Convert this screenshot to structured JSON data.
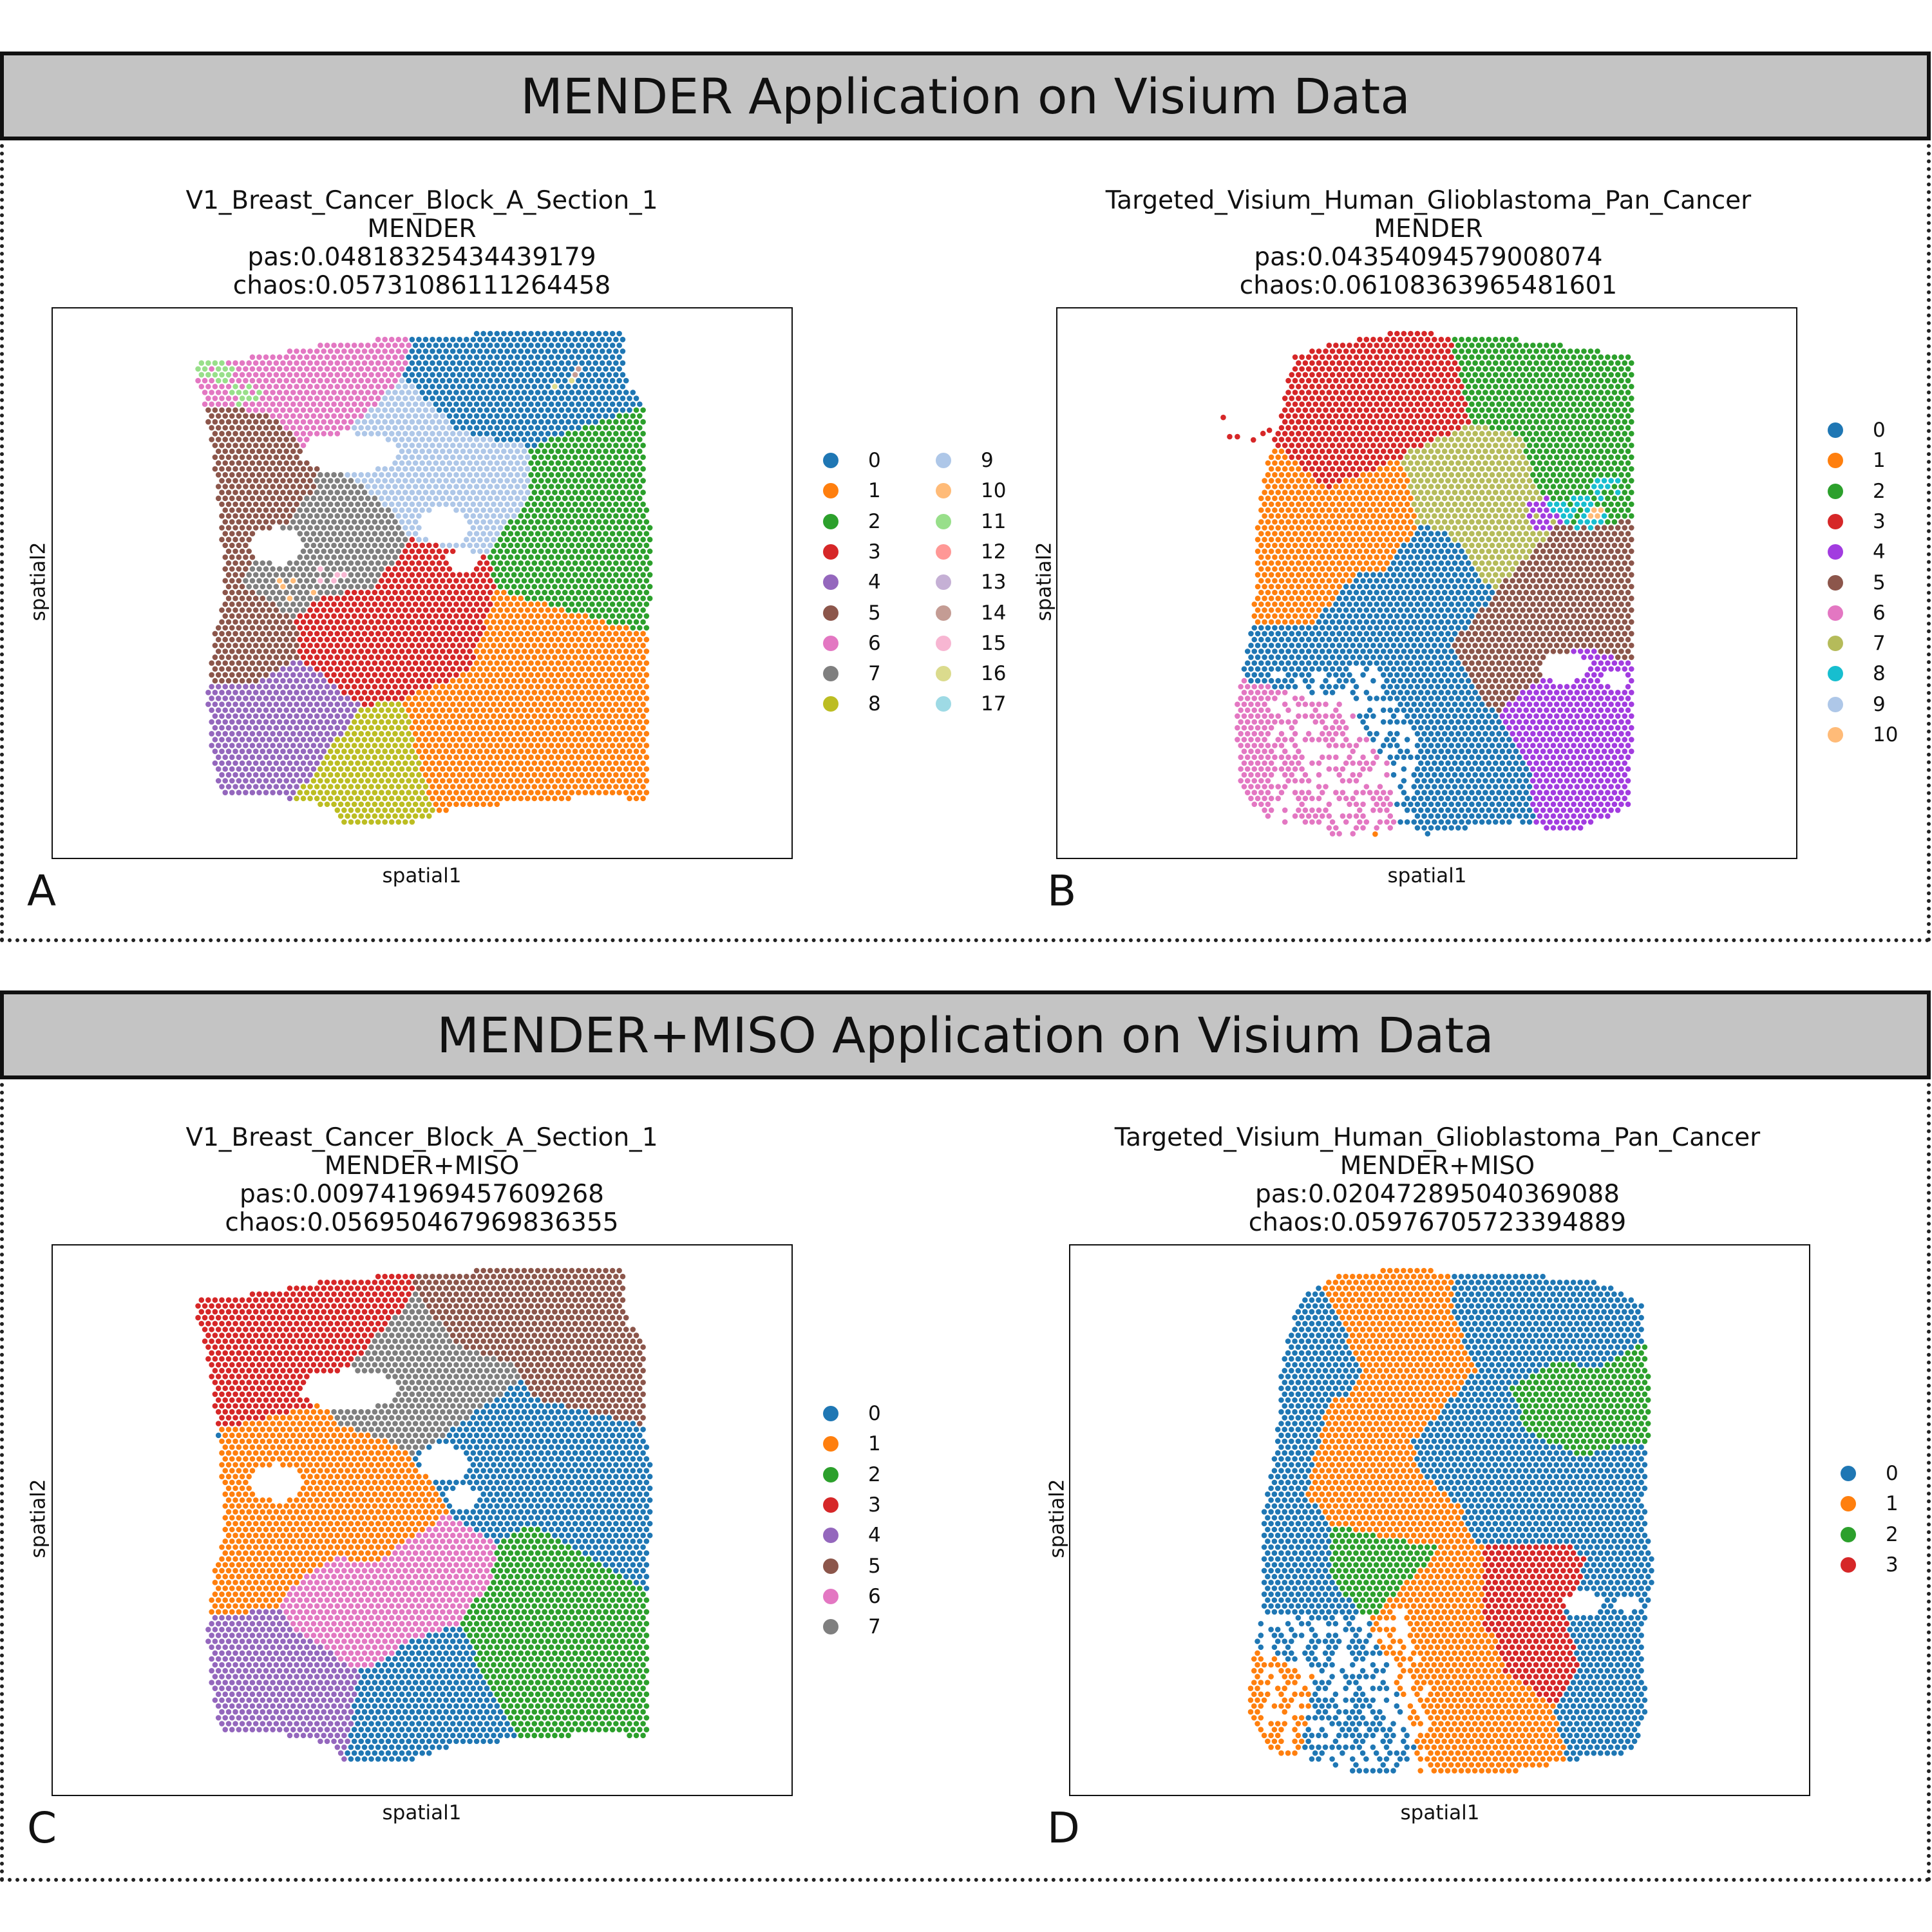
{
  "sections": [
    {
      "title": "MENDER Application on Visium Data"
    },
    {
      "title": "MENDER+MISO Application on Visium Data"
    }
  ],
  "common": {
    "xlabel": "spatial1",
    "ylabel": "spatial2"
  },
  "palette": [
    "#1f77b4",
    "#ff7f0e",
    "#2ca02c",
    "#d62728",
    "#9467bd",
    "#8c564b",
    "#e377c2",
    "#7f7f7f",
    "#bcbd22",
    "#17becf",
    "#aec7e8",
    "#ffbb78",
    "#98df8a",
    "#ff9896",
    "#c5b0d5",
    "#c49c94",
    "#f7b6d2",
    "#dbdb8d",
    "#9edae5"
  ],
  "palette_b": [
    "#1f77b4",
    "#ff7f0e",
    "#2ca02c",
    "#d62728",
    "#a23ce0",
    "#8c564b",
    "#e377c2",
    "#b5bb5a",
    "#17becf",
    "#aec7e8",
    "#ffbb78"
  ],
  "chart_data": [
    {
      "panel": "A",
      "type": "scatter",
      "title_lines": [
        "V1_Breast_Cancer_Block_A_Section_1",
        "MENDER",
        "pas:0.04818325434439179",
        "chaos:0.05731086111264458"
      ],
      "xlabel": "spatial1",
      "ylabel": "spatial2",
      "legend": [
        "0",
        "1",
        "2",
        "3",
        "4",
        "5",
        "6",
        "7",
        "8",
        "9",
        "10",
        "11",
        "12",
        "13",
        "14",
        "15",
        "16",
        "17"
      ],
      "legend_colors": [
        "#1f77b4",
        "#ff7f0e",
        "#2ca02c",
        "#d62728",
        "#9467bd",
        "#8c564b",
        "#e377c2",
        "#7f7f7f",
        "#bcbd22",
        "#aec7e8",
        "#ffbb78",
        "#98df8a",
        "#ff9896",
        "#c5b0d5",
        "#c49c94",
        "#f7b6d2",
        "#dbdb8d",
        "#9edae5"
      ],
      "legend_columns": 2,
      "approx_clusters": [
        {
          "label": "0",
          "region": "top-center/right"
        },
        {
          "label": "1",
          "region": "bottom-right"
        },
        {
          "label": "2",
          "region": "right"
        },
        {
          "label": "3",
          "region": "center"
        },
        {
          "label": "4",
          "region": "bottom-left"
        },
        {
          "label": "5",
          "region": "left"
        },
        {
          "label": "6",
          "region": "top-left"
        },
        {
          "label": "7",
          "region": "center-left"
        },
        {
          "label": "8",
          "region": "bottom-center"
        },
        {
          "label": "9",
          "region": "top-center"
        }
      ]
    },
    {
      "panel": "B",
      "type": "scatter",
      "title_lines": [
        "Targeted_Visium_Human_Glioblastoma_Pan_Cancer",
        "MENDER",
        "pas:0.04354094579008074",
        "chaos:0.06108363965481601"
      ],
      "xlabel": "spatial1",
      "ylabel": "spatial2",
      "legend": [
        "0",
        "1",
        "2",
        "3",
        "4",
        "5",
        "6",
        "7",
        "8",
        "9",
        "10"
      ],
      "legend_colors": [
        "#1f77b4",
        "#ff7f0e",
        "#2ca02c",
        "#d62728",
        "#a23ce0",
        "#8c564b",
        "#e377c2",
        "#b5bb5a",
        "#17becf",
        "#aec7e8",
        "#ffbb78"
      ],
      "legend_columns": 1,
      "approx_clusters": [
        {
          "label": "0",
          "region": "bottom-center"
        },
        {
          "label": "1",
          "region": "center-left"
        },
        {
          "label": "2",
          "region": "top-right"
        },
        {
          "label": "3",
          "region": "top-left"
        },
        {
          "label": "4",
          "region": "bottom-right"
        },
        {
          "label": "5",
          "region": "right"
        },
        {
          "label": "6",
          "region": "bottom-left"
        },
        {
          "label": "7",
          "region": "center"
        },
        {
          "label": "8",
          "region": "upper-right"
        }
      ]
    },
    {
      "panel": "C",
      "type": "scatter",
      "title_lines": [
        "V1_Breast_Cancer_Block_A_Section_1",
        "MENDER+MISO",
        "pas:0.009741969457609268",
        "chaos:0.056950467969836355"
      ],
      "xlabel": "spatial1",
      "ylabel": "spatial2",
      "legend": [
        "0",
        "1",
        "2",
        "3",
        "4",
        "5",
        "6",
        "7"
      ],
      "legend_colors": [
        "#1f77b4",
        "#ff7f0e",
        "#2ca02c",
        "#d62728",
        "#9467bd",
        "#8c564b",
        "#e377c2",
        "#7f7f7f"
      ],
      "legend_columns": 1,
      "approx_clusters": [
        {
          "label": "0",
          "region": "right and bottom-center"
        },
        {
          "label": "1",
          "region": "center-left"
        },
        {
          "label": "2",
          "region": "bottom-right"
        },
        {
          "label": "3",
          "region": "top-left"
        },
        {
          "label": "4",
          "region": "bottom-left"
        },
        {
          "label": "5",
          "region": "top-right"
        },
        {
          "label": "6",
          "region": "center"
        },
        {
          "label": "7",
          "region": "top-center"
        }
      ]
    },
    {
      "panel": "D",
      "type": "scatter",
      "title_lines": [
        "Targeted_Visium_Human_Glioblastoma_Pan_Cancer",
        "MENDER+MISO",
        "pas:0.020472895040369088",
        "chaos:0.05976705723394889"
      ],
      "xlabel": "spatial1",
      "ylabel": "spatial2",
      "legend": [
        "0",
        "1",
        "2",
        "3"
      ],
      "legend_colors": [
        "#1f77b4",
        "#ff7f0e",
        "#2ca02c",
        "#d62728"
      ],
      "legend_columns": 1,
      "approx_clusters": [
        {
          "label": "0",
          "region": "left and right"
        },
        {
          "label": "1",
          "region": "center band"
        },
        {
          "label": "2",
          "region": "right"
        },
        {
          "label": "3",
          "region": "bottom-center-right"
        }
      ]
    }
  ]
}
